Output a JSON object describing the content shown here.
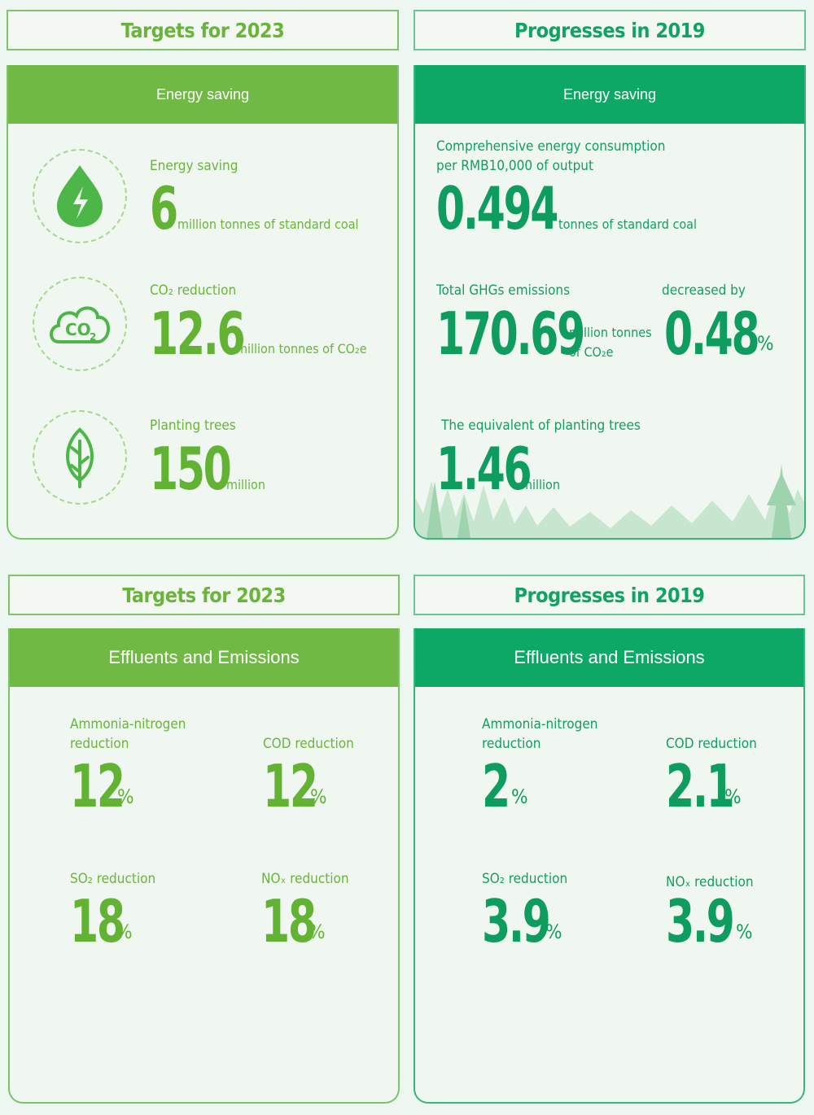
{
  "top": {
    "targets": {
      "header": "Targets for 2023",
      "bar": "Energy saving",
      "energy": {
        "label": "Energy saving",
        "value": "6",
        "unit": "million tonnes of standard coal"
      },
      "co2": {
        "label": "CO₂ reduction",
        "value": "12.6",
        "unit": "million tonnes of CO₂e"
      },
      "trees": {
        "label": "Planting trees",
        "value": "150",
        "unit": "million"
      },
      "icons": [
        "energy-drop-icon",
        "co2-cloud-icon",
        "leaf-icon"
      ]
    },
    "progress": {
      "header": "Progresses in 2019",
      "bar": "Energy saving",
      "consumption": {
        "label1": "Comprehensive energy consumption",
        "label2": "per RMB10,000 of output",
        "value": "0.494",
        "unit": "tonnes of standard coal"
      },
      "ghg": {
        "label": "Total GHGs emissions",
        "value": "170.69",
        "unit1": "million tonnes",
        "unit2": "of CO₂e"
      },
      "decrease": {
        "label": "decreased by",
        "value": "0.48",
        "unit": "%"
      },
      "trees": {
        "label": "The equivalent of planting trees",
        "value": "1.46",
        "unit": "million"
      }
    }
  },
  "bottom": {
    "targets": {
      "header": "Targets for 2023",
      "bar": "Effluents and Emissions",
      "ammonia": {
        "label1": "Ammonia-nitrogen",
        "label2": "reduction",
        "value": "12",
        "unit": "%"
      },
      "cod": {
        "label": "COD reduction",
        "value": "12",
        "unit": "%"
      },
      "so2": {
        "label": "SO₂ reduction",
        "value": "18",
        "unit": "%"
      },
      "nox": {
        "label": "NOₓ reduction",
        "value": "18",
        "unit": "%"
      }
    },
    "progress": {
      "header": "Progresses in 2019",
      "bar": "Effluents and Emissions",
      "ammonia": {
        "label1": "Ammonia-nitrogen",
        "label2": "reduction",
        "value": "2",
        "unit": "%"
      },
      "cod": {
        "label": "COD reduction",
        "value": "2.1",
        "unit": "%"
      },
      "so2": {
        "label": "SO₂ reduction",
        "value": "3.9",
        "unit": "%"
      },
      "nox": {
        "label": "NOₓ reduction",
        "value": "3.9",
        "unit": "%"
      }
    }
  },
  "colors": {
    "green_light": "#6fb944",
    "green_teal": "#0ea866"
  }
}
